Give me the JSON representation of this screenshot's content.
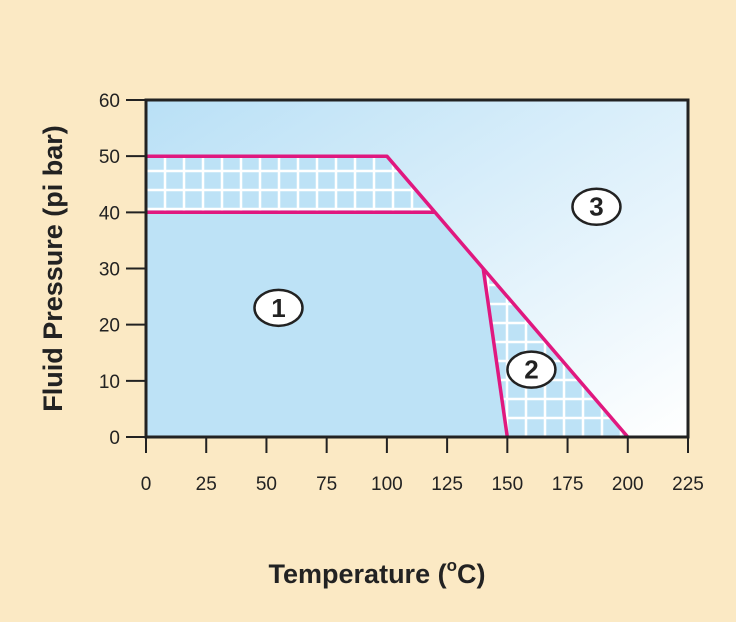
{
  "chart_data": {
    "type": "area",
    "xlabel": "Temperature (°C)",
    "xlabel_main": "Temperature (",
    "xlabel_sup": "o",
    "xlabel_end": "C)",
    "ylabel": "Fluid Pressure (pi bar)",
    "xlim": [
      0,
      225
    ],
    "ylim": [
      0,
      60
    ],
    "x_ticks": [
      "0",
      "25",
      "50",
      "75",
      "100",
      "125",
      "150",
      "175",
      "200",
      "225"
    ],
    "y_ticks": [
      "0",
      "10",
      "20",
      "30",
      "40",
      "50",
      "60"
    ],
    "grid": false,
    "lines": [
      {
        "points": [
          [
            0,
            50
          ],
          [
            100,
            50
          ],
          [
            200,
            0
          ]
        ]
      },
      {
        "points": [
          [
            0,
            40
          ],
          [
            120,
            40
          ]
        ]
      },
      {
        "points": [
          [
            140,
            30
          ],
          [
            150,
            0
          ]
        ]
      }
    ],
    "hatched_regions": [
      {
        "points": [
          [
            0,
            50
          ],
          [
            100,
            50
          ],
          [
            120,
            40
          ],
          [
            0,
            40
          ]
        ]
      },
      {
        "points": [
          [
            140,
            30
          ],
          [
            150,
            0
          ],
          [
            200,
            0
          ]
        ]
      }
    ],
    "region_labels": [
      {
        "text": "1",
        "x": 55,
        "y": 23
      },
      {
        "text": "2",
        "x": 160,
        "y": 12
      },
      {
        "text": "3",
        "x": 187,
        "y": 41
      }
    ],
    "colors": {
      "background": "#fbe9c4",
      "boundary_line": "#e0187f",
      "region_fill": "#bde2f6",
      "plot_gradient_light": "#ffffff",
      "grid_hatch": "#ffffff",
      "axis": "#222222"
    }
  }
}
